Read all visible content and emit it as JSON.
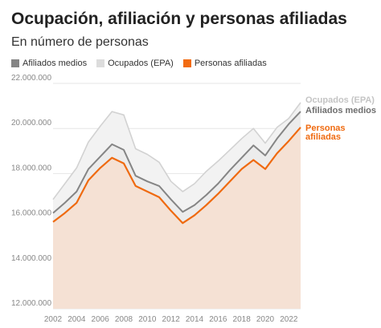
{
  "title": "Ocupación, afiliación y personas afiliadas",
  "subtitle": "En número de personas",
  "legend": [
    {
      "label": "Afiliados medios",
      "color": "#858585"
    },
    {
      "label": "Ocupados (EPA)",
      "color": "#dcdcdc"
    },
    {
      "label": "Personas afiliadas",
      "color": "#f26b12"
    }
  ],
  "chart_data": {
    "type": "area",
    "title": "Ocupación, afiliación y personas afiliadas",
    "subtitle": "En número de personas",
    "xlabel": "",
    "ylabel": "",
    "x": [
      2002,
      2003,
      2004,
      2005,
      2006,
      2007,
      2008,
      2009,
      2010,
      2011,
      2012,
      2013,
      2014,
      2015,
      2016,
      2017,
      2018,
      2019,
      2020,
      2021,
      2022,
      2023
    ],
    "ylim": [
      12000000,
      22000000
    ],
    "xlim": [
      2002,
      2023
    ],
    "y_ticks": [
      "12.000.000",
      "14.000.000",
      "16.000.000",
      "18.000.000",
      "20.000.000",
      "22.000.000"
    ],
    "y_tick_values": [
      12000000,
      14000000,
      16000000,
      18000000,
      20000000,
      22000000
    ],
    "x_ticks": [
      "2002",
      "2004",
      "2006",
      "2008",
      "2010",
      "2012",
      "2014",
      "2016",
      "2018",
      "2020",
      "2022"
    ],
    "x_tick_values": [
      2002,
      2004,
      2006,
      2008,
      2010,
      2012,
      2014,
      2016,
      2018,
      2020,
      2022
    ],
    "grid": true,
    "series": [
      {
        "name": "Ocupados (EPA)",
        "label_lines": [
          "Ocupados (EPA)"
        ],
        "color": "#d2d2d2",
        "values": [
          16850000,
          17550000,
          18250000,
          19400000,
          20100000,
          20750000,
          20600000,
          19100000,
          18850000,
          18500000,
          17650000,
          17200000,
          17550000,
          18100000,
          18550000,
          19050000,
          19550000,
          20000000,
          19350000,
          20050000,
          20450000,
          21150000
        ]
      },
      {
        "name": "Afiliados medios",
        "label_lines": [
          "Afiliados medios"
        ],
        "color": "#858585",
        "values": [
          16250000,
          16700000,
          17200000,
          18200000,
          18750000,
          19300000,
          19050000,
          17900000,
          17650000,
          17450000,
          16850000,
          16300000,
          16600000,
          17050000,
          17550000,
          18150000,
          18700000,
          19250000,
          18800000,
          19550000,
          20200000,
          20750000
        ]
      },
      {
        "name": "Personas afiliadas",
        "label_lines": [
          "Personas",
          "afiliadas"
        ],
        "color": "#ef6a10",
        "fill": "#f5e1d4",
        "values": [
          15850000,
          16250000,
          16700000,
          17700000,
          18250000,
          18700000,
          18450000,
          17450000,
          17200000,
          16950000,
          16350000,
          15800000,
          16150000,
          16600000,
          17100000,
          17650000,
          18200000,
          18600000,
          18200000,
          18900000,
          19450000,
          20050000
        ]
      }
    ]
  }
}
